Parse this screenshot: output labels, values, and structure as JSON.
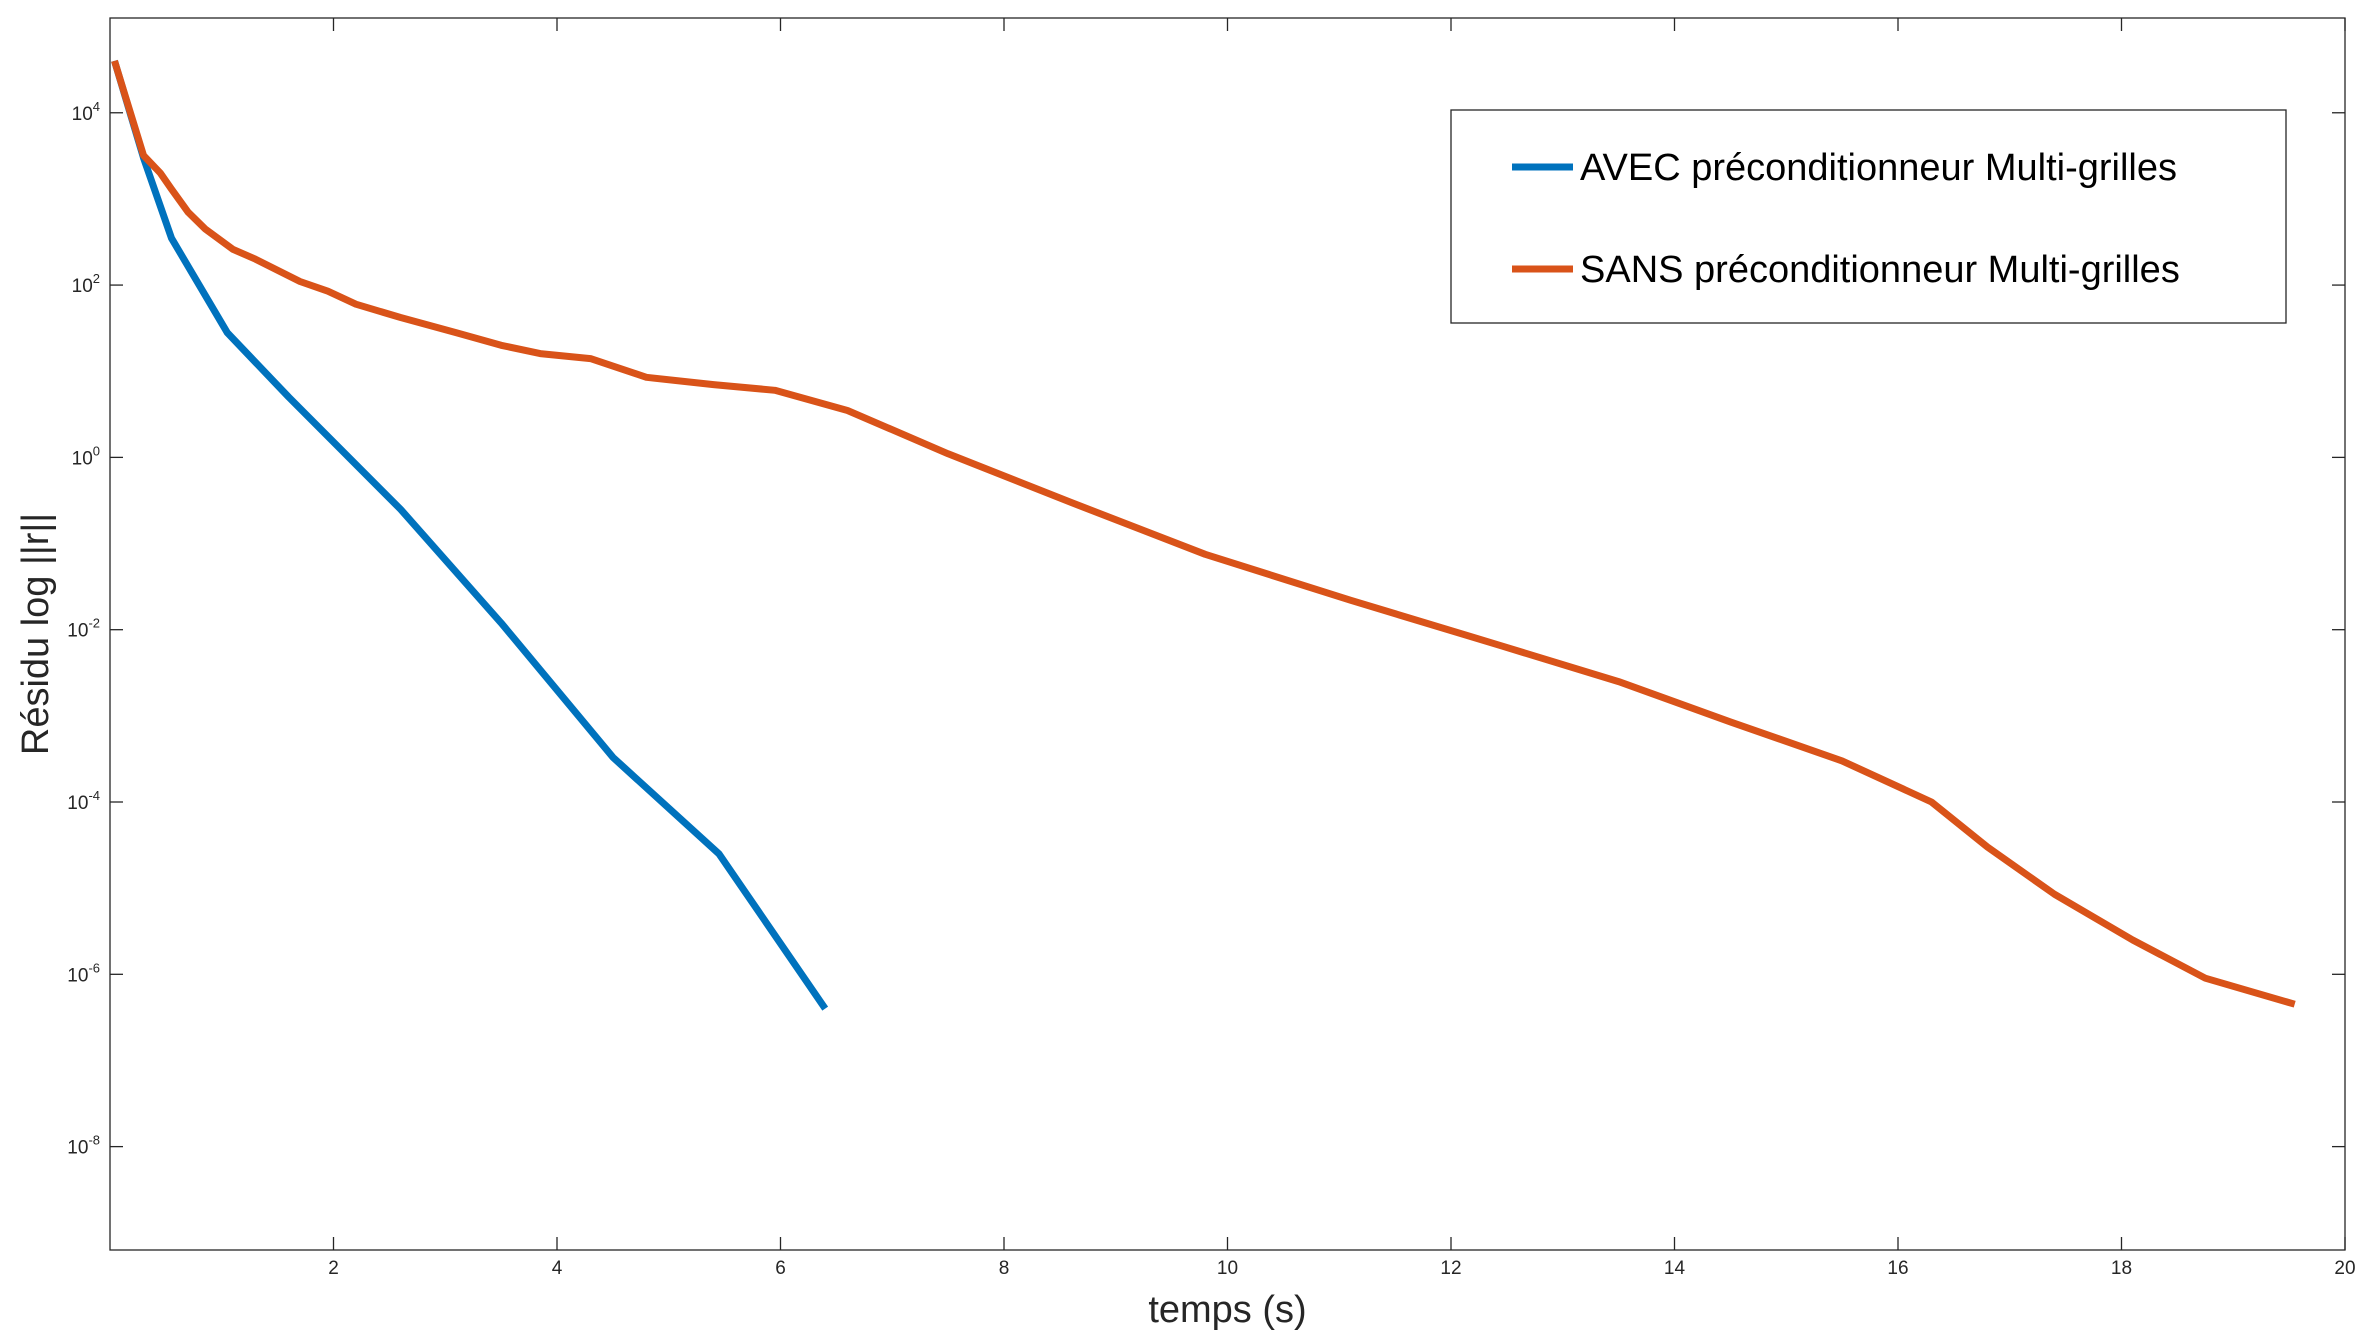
{
  "chart_data": {
    "type": "line",
    "title": "",
    "xlabel": "temps (s)",
    "ylabel": "Résidu log ||r||",
    "xlim": [
      0,
      20
    ],
    "ylim_exponent": [
      -9.2,
      5.1
    ],
    "yscale": "log",
    "grid": false,
    "legend_position": "top-right",
    "x_ticks": [
      2,
      4,
      6,
      8,
      10,
      12,
      14,
      16,
      18,
      20
    ],
    "x_tick_labels": [
      "2",
      "4",
      "6",
      "8",
      "10",
      "12",
      "14",
      "16",
      "18",
      "20"
    ],
    "y_ticks": [
      {
        "base": "10",
        "exp": "4"
      },
      {
        "base": "10",
        "exp": "2"
      },
      {
        "base": "10",
        "exp": "0"
      },
      {
        "base": "10",
        "exp": "-2"
      },
      {
        "base": "10",
        "exp": "-4"
      },
      {
        "base": "10",
        "exp": "-6"
      },
      {
        "base": "10",
        "exp": "-8"
      }
    ],
    "series": [
      {
        "name": "AVEC préconditionneur Multi-grilles",
        "color": "#0072BD",
        "x": [
          0.04,
          0.3,
          0.55,
          1.05,
          1.6,
          2.6,
          3.5,
          4.5,
          5.45,
          6.4
        ],
        "y": [
          40000,
          3000,
          350,
          28,
          5,
          0.25,
          0.012,
          0.00033,
          2.5e-05,
          4e-07
        ]
      },
      {
        "name": "SANS préconditionneur Multi-grilles",
        "color": "#D95319",
        "x": [
          0.04,
          0.3,
          0.45,
          0.55,
          0.7,
          0.85,
          1.1,
          1.3,
          1.7,
          1.95,
          2.2,
          2.6,
          3.1,
          3.5,
          3.85,
          4.3,
          4.8,
          5.4,
          5.95,
          6.6,
          7.5,
          8.6,
          9.8,
          11.1,
          12.45,
          13.5,
          14.5,
          15.5,
          16.3,
          16.8,
          17.4,
          18.1,
          18.75,
          19.55
        ],
        "y": [
          40000,
          3200,
          2000,
          1300,
          700,
          450,
          260,
          200,
          110,
          85,
          60,
          42,
          28,
          20,
          16,
          14,
          8.5,
          7,
          6,
          3.5,
          1.1,
          0.3,
          0.075,
          0.022,
          0.0065,
          0.0025,
          0.00085,
          0.0003,
          0.0001,
          3e-05,
          8.5e-06,
          2.5e-06,
          9e-07,
          4.5e-07
        ]
      }
    ]
  }
}
